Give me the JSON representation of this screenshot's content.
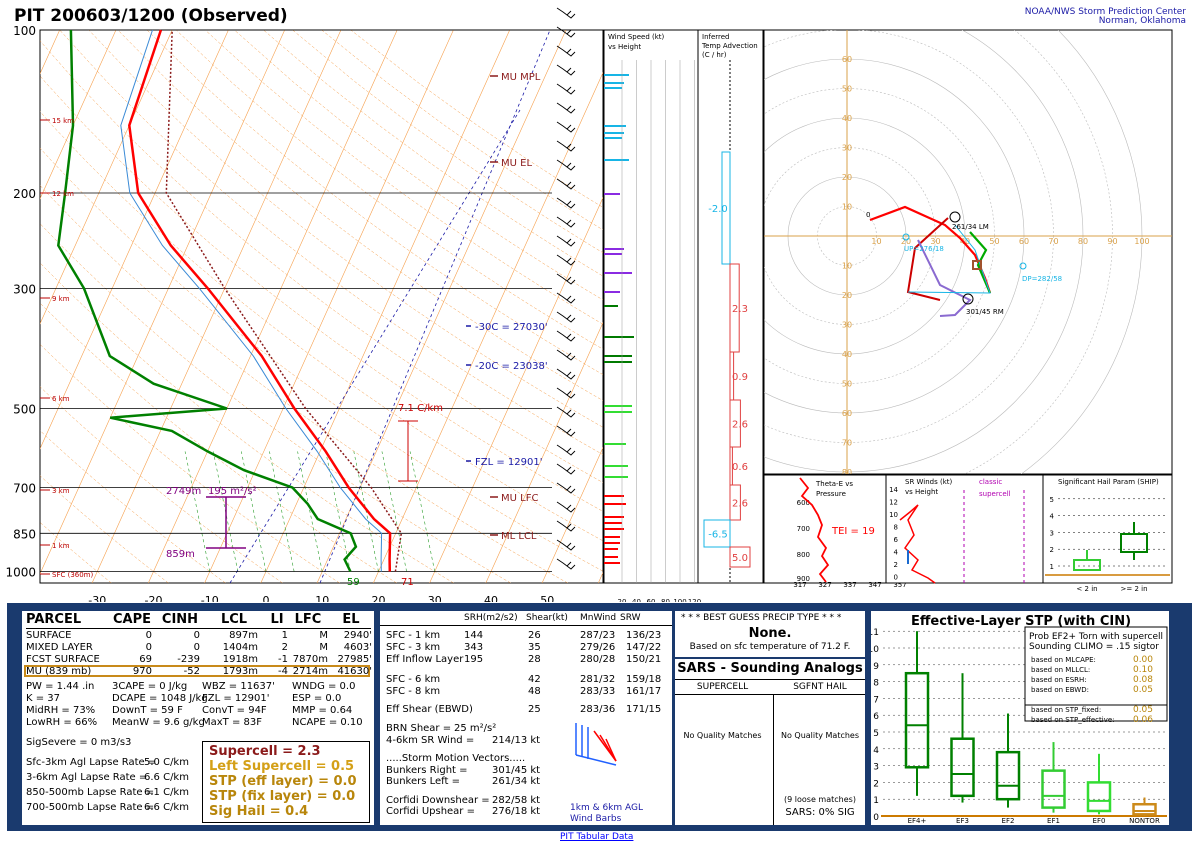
{
  "header": {
    "title": "PIT   200603/1200  (Observed)",
    "agency": "NOAA/NWS Storm Prediction Center",
    "location": "Norman, Oklahoma"
  },
  "chart_data": [
    {
      "type": "line",
      "name": "skew-t",
      "pressure_levels": [
        100,
        200,
        300,
        500,
        700,
        850,
        1000
      ],
      "x_ticks": [
        -30,
        -20,
        -10,
        0,
        10,
        20,
        30,
        40,
        50
      ],
      "height_labels": [
        "15 km",
        "12 km",
        "9 km",
        "6 km",
        "3 km",
        "1 km",
        "SFC (360m)"
      ],
      "level_labels": [
        "MU MPL",
        "MU EL",
        "MU LFC",
        "ML LCL"
      ],
      "isotherm_labels": [
        "-30C = 27030'",
        "-20C = 23038'",
        "FZL = 12901'"
      ],
      "lapse_rate_label": "7.1 C/km",
      "effective_layer": {
        "top": "2749m",
        "bottom": "859m",
        "srh": "195 m²/s²"
      },
      "sfc_dewpoint": "59",
      "sfc_temp": "71",
      "temperature": [
        [
          1000,
          22
        ],
        [
          950,
          21
        ],
        [
          850,
          19
        ],
        [
          800,
          15
        ],
        [
          700,
          8
        ],
        [
          600,
          1
        ],
        [
          500,
          -8
        ],
        [
          400,
          -18
        ],
        [
          300,
          -33
        ],
        [
          250,
          -43
        ],
        [
          200,
          -53
        ],
        [
          150,
          -60
        ],
        [
          100,
          -62
        ]
      ],
      "dewpoint": [
        [
          1000,
          15
        ],
        [
          950,
          13
        ],
        [
          900,
          14
        ],
        [
          850,
          12
        ],
        [
          800,
          5
        ],
        [
          750,
          2
        ],
        [
          700,
          -2
        ],
        [
          650,
          -12
        ],
        [
          600,
          -20
        ],
        [
          550,
          -28
        ],
        [
          520,
          -40
        ],
        [
          500,
          -20
        ],
        [
          450,
          -35
        ],
        [
          400,
          -45
        ],
        [
          300,
          -55
        ],
        [
          250,
          -63
        ],
        [
          200,
          -66
        ],
        [
          150,
          -70
        ],
        [
          100,
          -78
        ]
      ]
    },
    {
      "type": "bar",
      "name": "wind speed vs height",
      "title": "Wind Speed (kt) vs Height",
      "x_ticks": [
        "20",
        "40",
        "60",
        "80",
        "100",
        "120"
      ]
    },
    {
      "type": "bar",
      "name": "inferred temperature advection",
      "title": "Inferred Temp Advection (C / hr)",
      "values": [
        -2.0,
        2.3,
        0.9,
        2.6,
        0.6,
        2.6,
        -6.5,
        5.0
      ]
    },
    {
      "type": "line",
      "name": "hodograph",
      "ring_labels": [
        "10",
        "20",
        "30",
        "40",
        "50",
        "60",
        "70",
        "80",
        "90",
        "100"
      ],
      "markers": [
        "0",
        "261/34 LM",
        "UP=276/18",
        "301/45 RM",
        "DP=282/58"
      ]
    },
    {
      "type": "line",
      "name": "theta-e vs pressure",
      "title": "Theta-E vs Pressure",
      "y_ticks": [
        "600",
        "700",
        "800",
        "900"
      ],
      "x_ticks": [
        "317",
        "327",
        "337",
        "347",
        "357"
      ],
      "annotation": "TEI = 19"
    },
    {
      "type": "line",
      "name": "sr winds",
      "title": "SR Winds (kt) vs Height",
      "y_ticks": [
        "14",
        "12",
        "10",
        "8",
        "6",
        "4",
        "2",
        "0"
      ],
      "labels": [
        "classic",
        "supercell"
      ]
    },
    {
      "type": "bar",
      "name": "significant hail param",
      "title": "Significant Hail Param (SHIP)",
      "y_ticks": [
        "1",
        "2",
        "3",
        "4",
        "5"
      ],
      "categories": [
        "< 2 in",
        ">= 2 in"
      ]
    },
    {
      "type": "bar",
      "name": "effective-layer stp",
      "title": "Effective-Layer STP (with CIN)",
      "categories": [
        "EF4+",
        "EF3",
        "EF2",
        "EF1",
        "EF0",
        "NONTOR"
      ],
      "y_ticks": [
        "0",
        "1",
        "2",
        "3",
        "4",
        "5",
        "6",
        "7",
        "8",
        "9",
        "10",
        "11"
      ],
      "ylim": [
        0,
        11
      ],
      "boxes": [
        {
          "whisker_low": 1.2,
          "q1": 2.9,
          "median": 5.4,
          "q3": 8.5,
          "whisker_high": 11.0
        },
        {
          "whisker_low": 0.8,
          "q1": 1.2,
          "median": 2.5,
          "q3": 4.6,
          "whisker_high": 8.5
        },
        {
          "whisker_low": 0.5,
          "q1": 1.0,
          "median": 1.8,
          "q3": 3.8,
          "whisker_high": 6.1
        },
        {
          "whisker_low": 0.2,
          "q1": 0.5,
          "median": 1.2,
          "q3": 2.7,
          "whisker_high": 4.4
        },
        {
          "whisker_low": 0.1,
          "q1": 0.3,
          "median": 0.9,
          "q3": 2.0,
          "whisker_high": 3.7
        },
        {
          "whisker_low": 0.0,
          "q1": 0.1,
          "median": 0.3,
          "q3": 0.7,
          "whisker_high": 1.1
        }
      ]
    }
  ],
  "parcel": {
    "headers": [
      "PARCEL",
      "CAPE",
      "CINH",
      "LCL",
      "LI",
      "LFC",
      "EL"
    ],
    "rows": [
      [
        "SURFACE",
        "0",
        "0",
        "897m",
        "1",
        "M",
        "2940'"
      ],
      [
        "MIXED LAYER",
        "0",
        "0",
        "1404m",
        "2",
        "M",
        "4603'"
      ],
      [
        "FCST SURFACE",
        "69",
        "-239",
        "1918m",
        "-1",
        "7870m",
        "27985'"
      ],
      [
        "MU  (839 mb)",
        "970",
        "-52",
        "1793m",
        "-4",
        "2714m",
        "41630'"
      ]
    ],
    "indices": [
      [
        "PW = 1.44 .in",
        "3CAPE = 0 J/kg",
        "WBZ = 11637'",
        "WNDG = 0.0"
      ],
      [
        "K = 37",
        "DCAPE = 1048 J/kg",
        "FZL = 12901'",
        "ESP = 0.0"
      ],
      [
        "MidRH = 73%",
        "DownT = 59 F",
        "ConvT = 94F",
        "MMP = 0.64"
      ],
      [
        "LowRH = 66%",
        "MeanW = 9.6 g/kg",
        "MaxT = 83F",
        "NCAPE = 0.10"
      ]
    ],
    "sigsevere": "SigSevere = 0 m3/s3",
    "lapse": [
      [
        "Sfc-3km Agl Lapse Rate =",
        "5.0 C/km"
      ],
      [
        "3-6km Agl Lapse Rate =",
        "6.6 C/km"
      ],
      [
        "850-500mb Lapse Rate =",
        "6.1 C/km"
      ],
      [
        "700-500mb Lapse Rate =",
        "6.6 C/km"
      ]
    ],
    "composite": [
      "Supercell = 2.3",
      "Left Supercell = 0.5",
      "STP (eff layer) = 0.0",
      "STP (fix layer) = 0.0",
      "Sig Hail = 0.4"
    ]
  },
  "kinematics": {
    "headers": [
      "SRH(m2/s2)",
      "Shear(kt)",
      "MnWind",
      "SRW"
    ],
    "rows": [
      [
        "SFC - 1 km",
        "144",
        "26",
        "287/23",
        "136/23"
      ],
      [
        "SFC - 3 km",
        "343",
        "35",
        "279/26",
        "147/22"
      ],
      [
        "Eff Inflow Layer",
        "195",
        "28",
        "280/28",
        "150/21"
      ],
      [
        "SFC - 6 km",
        "",
        "42",
        "281/32",
        "159/18"
      ],
      [
        "SFC - 8 km",
        "",
        "48",
        "283/33",
        "161/17"
      ],
      [
        "Eff Shear (EBWD)",
        "",
        "25",
        "283/36",
        "171/15"
      ]
    ],
    "brn": [
      "BRN Shear =",
      "25 m²/s²"
    ],
    "sr46": [
      "4-6km SR Wind =",
      "214/13 kt"
    ],
    "storm_motion_title": ".....Storm Motion Vectors.....",
    "storm_motion": [
      [
        "Bunkers Right =",
        "301/45 kt"
      ],
      [
        "Bunkers Left =",
        "261/34 kt"
      ]
    ],
    "corfidi": [
      [
        "Corfidi Downshear =",
        "282/58 kt"
      ],
      [
        "Corfidi Upshear =",
        "276/18 kt"
      ]
    ],
    "barb_label": [
      "1km & 6km AGL",
      "Wind Barbs"
    ]
  },
  "precip": {
    "title": "* * * BEST GUESS PRECIP TYPE * * *",
    "value": "None.",
    "basis": "Based on sfc temperature of 71.2 F."
  },
  "sars": {
    "title": "SARS - Sounding Analogs",
    "cols": [
      "SUPERCELL",
      "SGFNT HAIL"
    ],
    "none": [
      "No Quality Matches",
      "No Quality Matches"
    ],
    "loose": "(9 loose matches)",
    "sig": "SARS:  0% SIG"
  },
  "stp_panel": {
    "prob_lines": [
      "Prob EF2+ Torn with supercell",
      "Sounding CLIMO = .15 sigtor"
    ],
    "based": [
      [
        "based on MLCAPE:",
        "0.00"
      ],
      [
        "based on MLLCL:",
        "0.10"
      ],
      [
        "based on ESRH:",
        "0.08"
      ],
      [
        "based on EBWD:",
        "0.05"
      ],
      [
        "based on STP_fixed:",
        "0.05"
      ],
      [
        "based on STP_effective:",
        "0.06"
      ]
    ]
  },
  "footer_link": "PIT Tabular Data",
  "colors": {
    "temp": "#ff0000",
    "dewpt": "#008000",
    "navy": "#1a3a6e"
  }
}
